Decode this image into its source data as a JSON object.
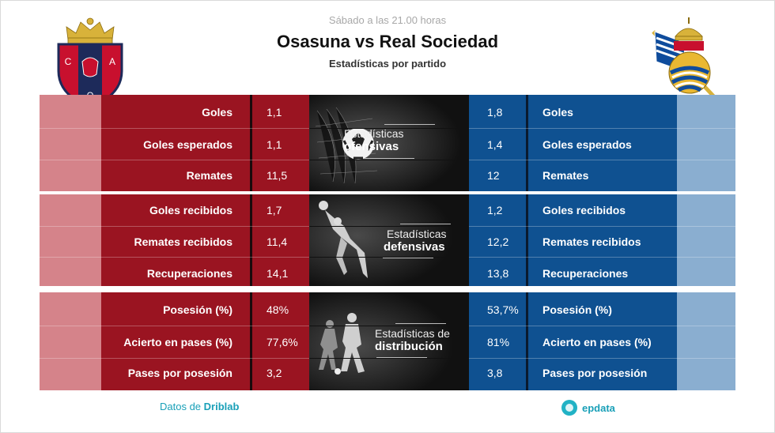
{
  "header": {
    "kicker": "Sábado a las 21.00 horas",
    "title": "Osasuna vs Real Sociedad",
    "subtitle": "Estadísticas por partido"
  },
  "sections": [
    {
      "label_line1": "Estadísticas",
      "label_line2": "ofensivas",
      "icon": "football-net-icon",
      "rows": [
        {
          "home_label": "Goles",
          "home_value": "1,1",
          "away_value": "1,8",
          "away_label": "Goles"
        },
        {
          "home_label": "Goles esperados",
          "home_value": "1,1",
          "away_value": "1,4",
          "away_label": "Goles esperados"
        },
        {
          "home_label": "Remates",
          "home_value": "11,5",
          "away_value": "12",
          "away_label": "Remates"
        }
      ]
    },
    {
      "label_line1": "Estadísticas",
      "label_line2": "defensivas",
      "icon": "goalkeeper-icon",
      "rows": [
        {
          "home_label": "Goles recibidos",
          "home_value": "1,7",
          "away_value": "1,2",
          "away_label": "Goles recibidos"
        },
        {
          "home_label": "Remates recibidos",
          "home_value": "11,4",
          "away_value": "12,2",
          "away_label": "Remates recibidos"
        },
        {
          "home_label": "Recuperaciones",
          "home_value": "14,1",
          "away_value": "13,8",
          "away_label": "Recuperaciones"
        }
      ]
    },
    {
      "label_line1": "Estadísticas de",
      "label_line2": "distribución",
      "icon": "players-icon",
      "rows": [
        {
          "home_label": "Posesión (%)",
          "home_value": "48%",
          "away_value": "53,7%",
          "away_label": "Posesión (%)"
        },
        {
          "home_label": "Acierto en pases (%)",
          "home_value": "77,6%",
          "away_value": "81%",
          "away_label": "Acierto en pases (%)"
        },
        {
          "home_label": "Pases por posesión",
          "home_value": "3,2",
          "away_value": "3,8",
          "away_label": "Pases por posesión"
        }
      ]
    }
  ],
  "home_crest": {
    "letters": [
      "C",
      "A",
      "O"
    ]
  },
  "footer": {
    "source_prefix": "Datos de",
    "source_name": "Driblab",
    "brand": "epdata"
  },
  "colors": {
    "home": "#9a1421",
    "home_light": "#d5838a",
    "away": "#0f5191",
    "away_light": "#8aaed0",
    "accent": "#1aa0b8"
  }
}
